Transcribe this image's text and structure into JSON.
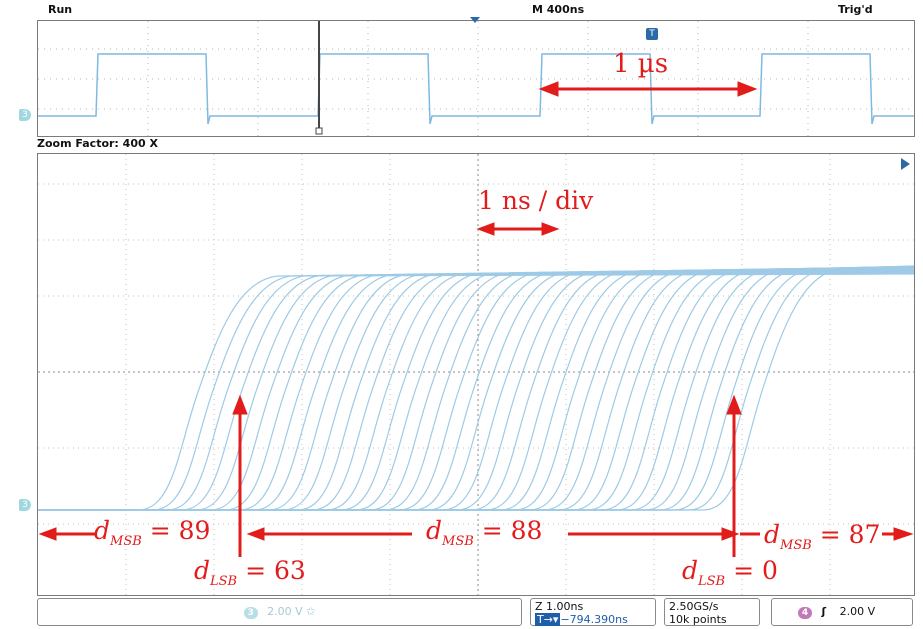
{
  "status": {
    "run": "Run",
    "timebase": "M 400ns",
    "trigger": "Trig'd"
  },
  "zoom_factor": "Zoom Factor: 400 X",
  "markers": {
    "channel": "3",
    "trigger": "T"
  },
  "annotations": {
    "period": "1 µs",
    "zoom_div": "1 ns / div",
    "msb_left": {
      "sym": "d",
      "sub": "MSB",
      "value": "= 89"
    },
    "msb_mid": {
      "sym": "d",
      "sub": "MSB",
      "value": "= 88"
    },
    "msb_right": {
      "sym": "d",
      "sub": "MSB",
      "value": "= 87"
    },
    "lsb_left": {
      "sym": "d",
      "sub": "LSB",
      "value": "= 63"
    },
    "lsb_right": {
      "sym": "d",
      "sub": "LSB",
      "value": "= 0"
    }
  },
  "bottom": {
    "ch3_badge": "3",
    "ch3_scale": "2.00 V",
    "zoom_scale": "Z 1.00ns",
    "zoom_pos": "−794.390ns",
    "sample_rate": "2.50GS/s",
    "record_length": "10k points",
    "ch4_badge": "4",
    "trigger_slope": "ʃ",
    "trigger_level": "2.00 V"
  },
  "colors": {
    "trace": "#9ecae6",
    "annotation": "#e21b1b",
    "grid": "#9a9a9a"
  }
}
